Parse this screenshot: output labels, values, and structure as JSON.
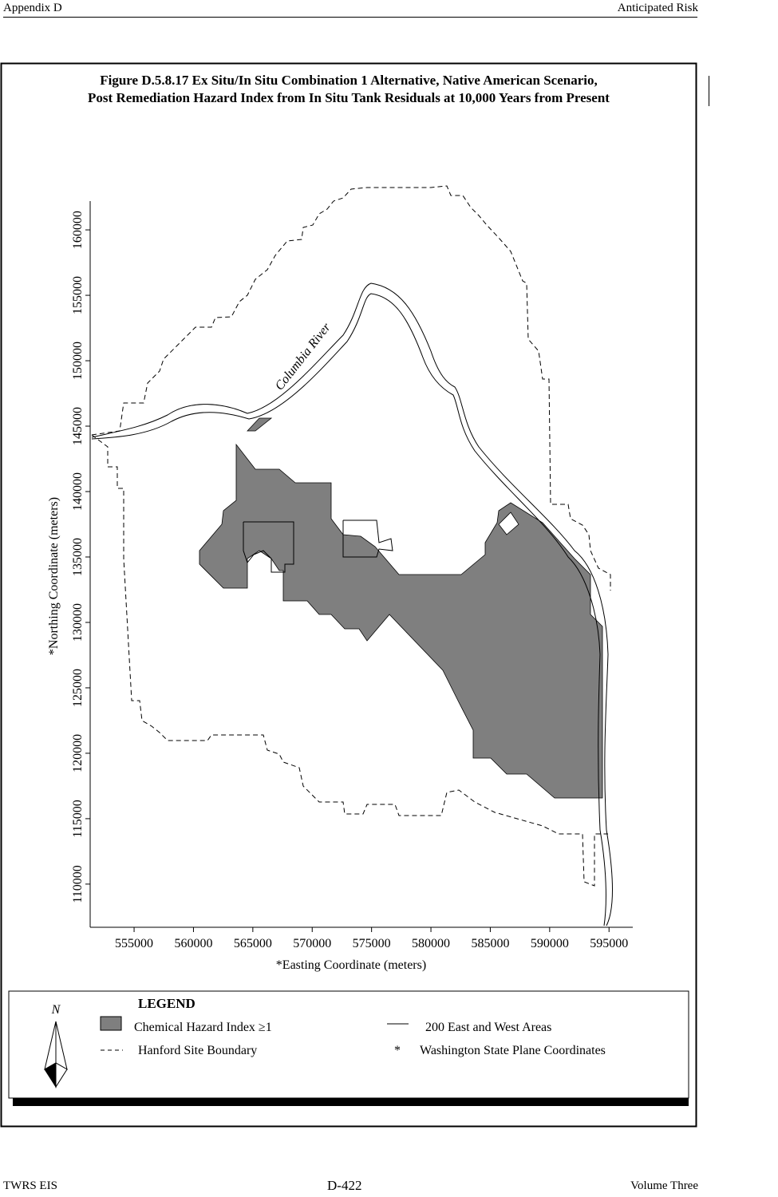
{
  "header": {
    "left": "Appendix D",
    "right": "Anticipated Risk"
  },
  "figure": {
    "title_line1": "Figure D.5.8.17  Ex Situ/In Situ Combination 1 Alternative, Native American Scenario,",
    "title_line2": "Post Remediation Hazard Index from In Situ Tank Residuals at 10,000 Years from Present",
    "river_label": "Columbia River",
    "x_label": "*Easting Coordinate (meters)",
    "y_label": "*Northing Coordinate (meters)",
    "xlim": [
      551300,
      597000
    ],
    "ylim": [
      106700,
      162200
    ],
    "xticks": [
      555000,
      560000,
      565000,
      570000,
      575000,
      580000,
      585000,
      590000,
      595000
    ],
    "yticks": [
      110000,
      115000,
      120000,
      125000,
      130000,
      135000,
      140000,
      145000,
      150000,
      155000,
      160000
    ]
  },
  "legend": {
    "north": "N",
    "title": "LEGEND",
    "hazard": "Chemical Hazard Index  ≥1",
    "areas": "200 East and West Areas",
    "boundary": "Hanford Site Boundary",
    "star": "*",
    "coords": "Washington State Plane Coordinates"
  },
  "footer": {
    "left": "TWRS EIS",
    "center": "D-422",
    "right": "Volume Three"
  }
}
